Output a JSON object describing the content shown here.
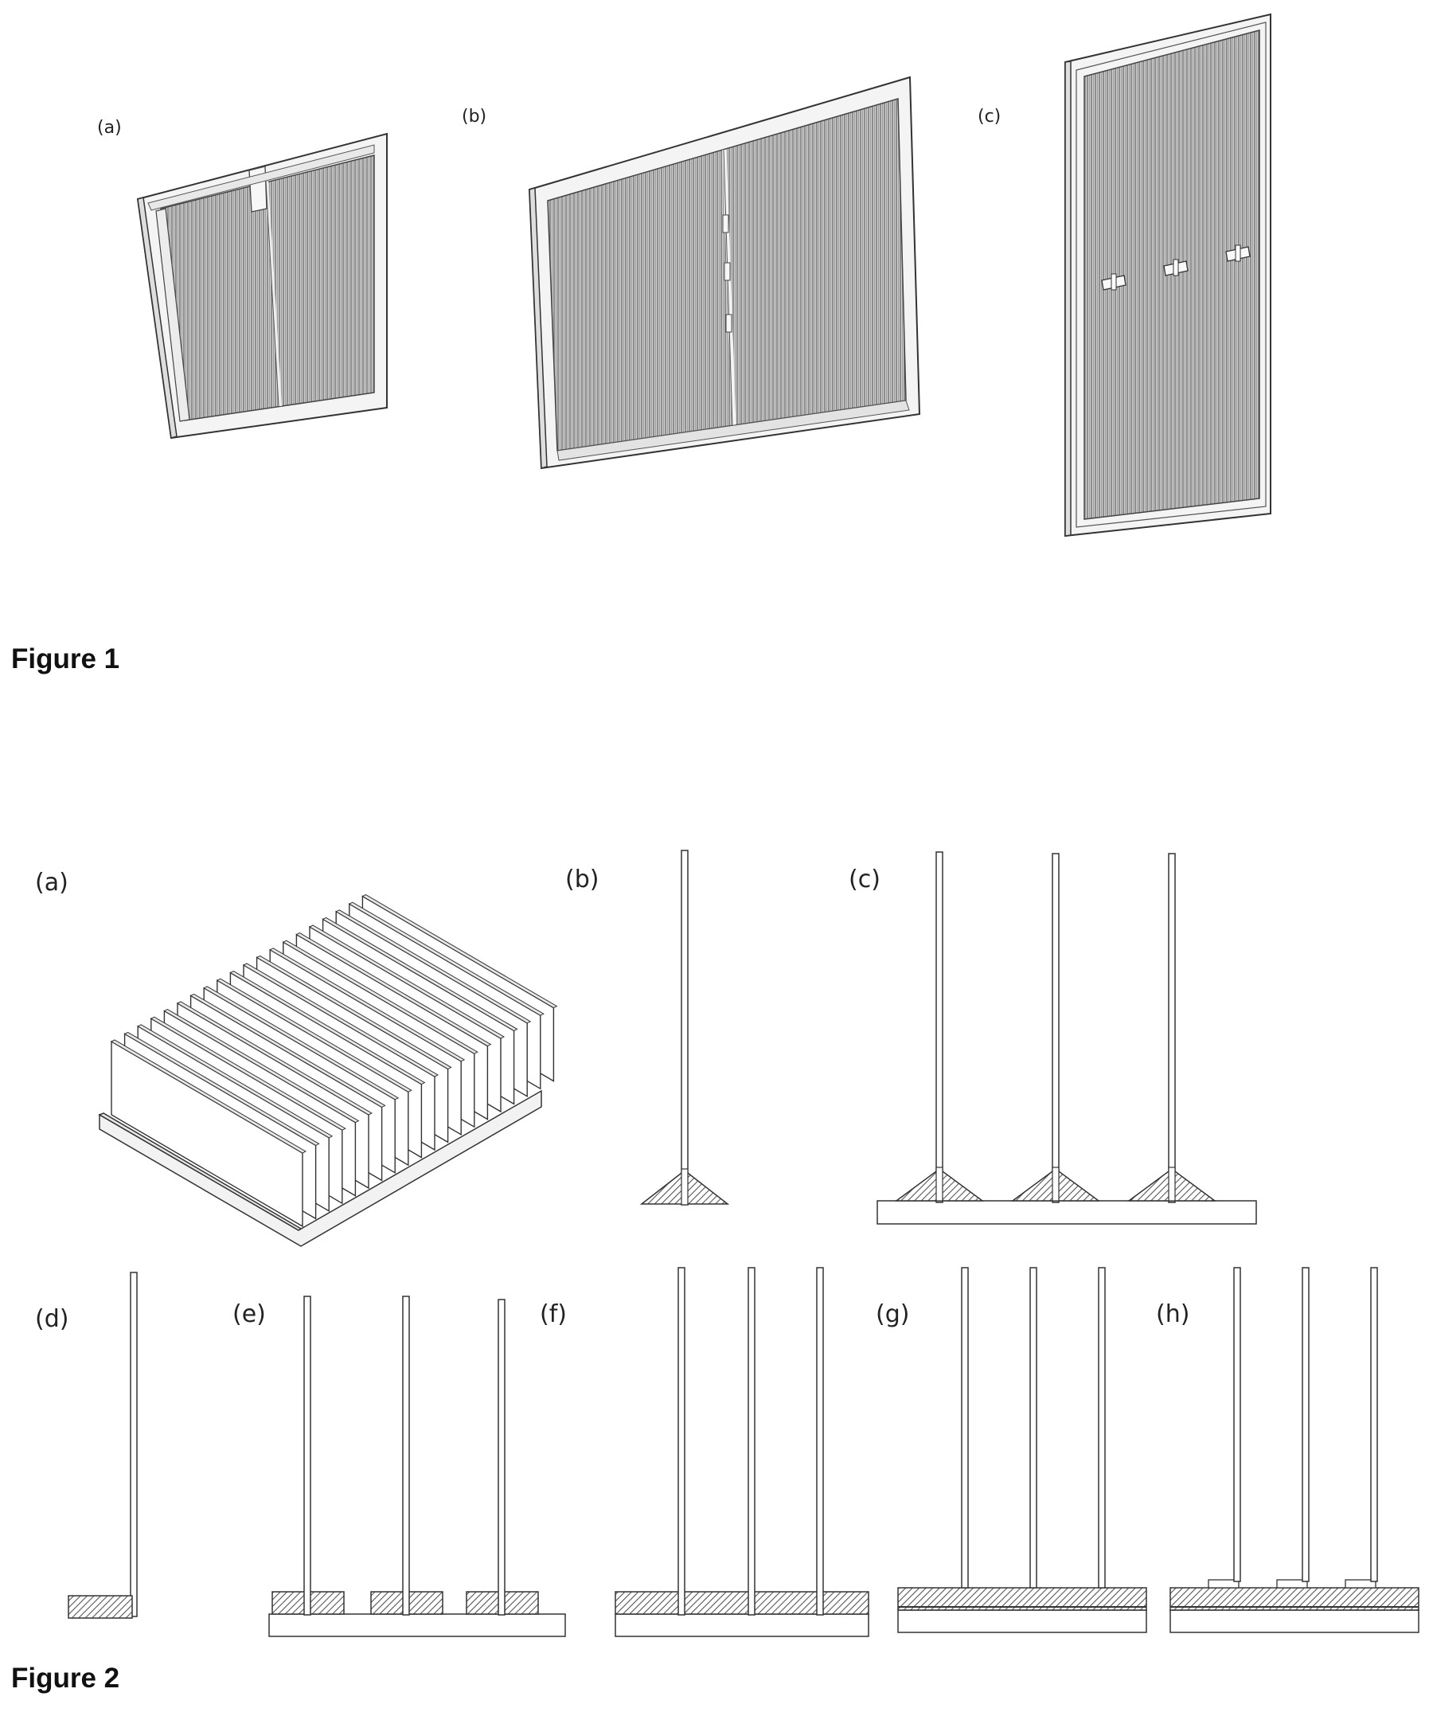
{
  "figure1": {
    "caption": "Figure 1",
    "panels": [
      {
        "label": "(a)"
      },
      {
        "label": "(b)"
      },
      {
        "label": "(c)"
      }
    ]
  },
  "figure2": {
    "caption": "Figure 2",
    "panels": [
      {
        "label": "(a)"
      },
      {
        "label": "(b)"
      },
      {
        "label": "(c)"
      },
      {
        "label": "(d)"
      },
      {
        "label": "(e)"
      },
      {
        "label": "(f)"
      },
      {
        "label": "(g)"
      },
      {
        "label": "(h)"
      }
    ]
  }
}
